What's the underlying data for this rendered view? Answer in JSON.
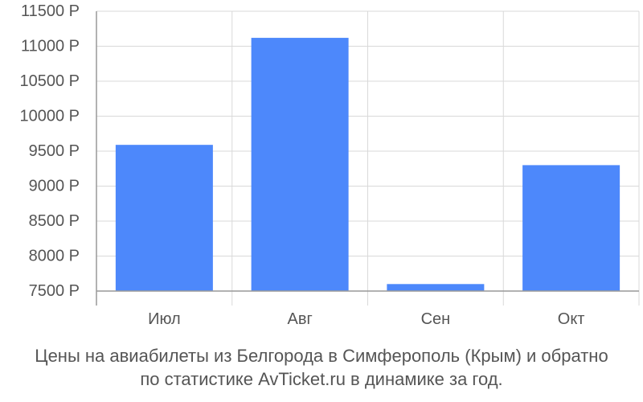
{
  "chart_data": {
    "type": "bar",
    "categories": [
      "Июл",
      "Авг",
      "Сен",
      "Окт"
    ],
    "values": [
      9590,
      11120,
      7600,
      9300
    ],
    "ylim": [
      7500,
      11500
    ],
    "yticks": [
      7500,
      8000,
      8500,
      9000,
      9500,
      10000,
      10500,
      11000,
      11500
    ],
    "ytick_labels": [
      "7500 Р",
      "8000 Р",
      "8500 Р",
      "9000 Р",
      "9500 Р",
      "10000 Р",
      "10500 Р",
      "11000 Р",
      "11500 Р"
    ],
    "grid": true,
    "colors": {
      "bar": "#4d88fb",
      "grid": "#d9d9d9",
      "axis": "#999999",
      "text": "#555555"
    }
  },
  "caption": {
    "line1": "Цены на авиабилеты из Белгорода в Симферополь (Крым) и обратно",
    "line2": "по статистике AvTicket.ru в динамике за год."
  }
}
